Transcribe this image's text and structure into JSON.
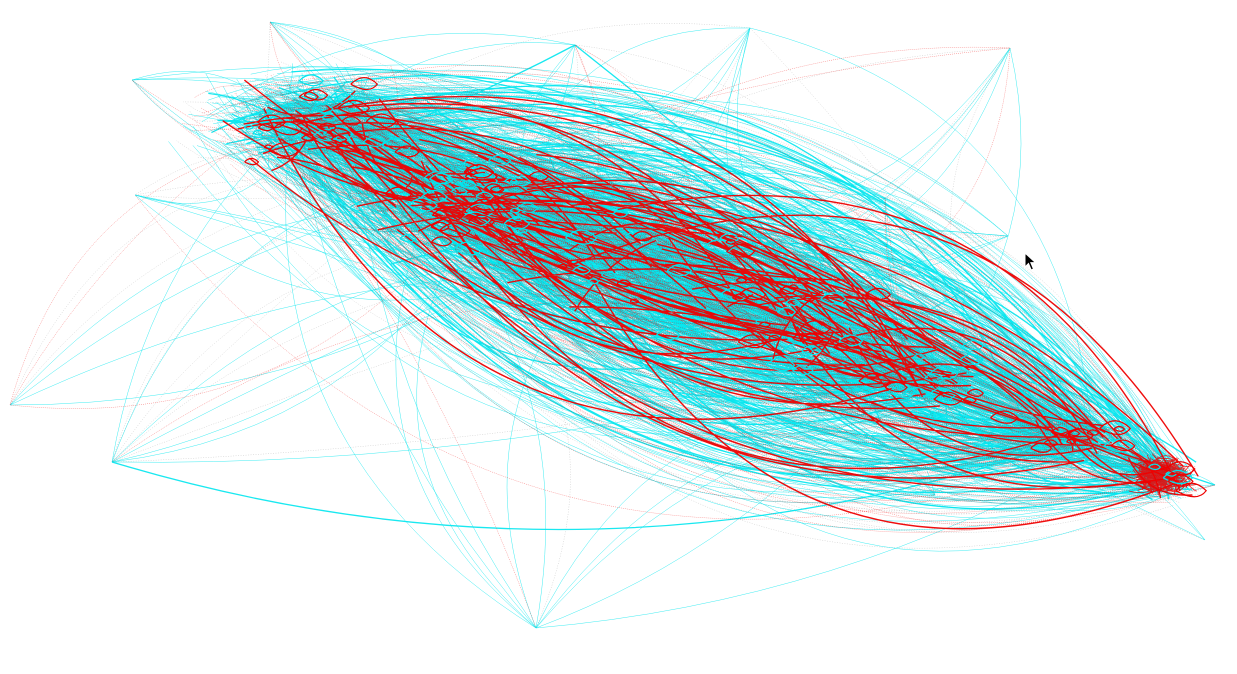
{
  "graph": {
    "edge_colors": {
      "cyan": "#00e5ee",
      "red": "#ee0000",
      "gray": "#8c8c8c"
    },
    "background": "#ffffff",
    "edge_style": "curved",
    "legend": "none"
  },
  "cursor": {
    "icon": "arrow-pointer-icon"
  }
}
